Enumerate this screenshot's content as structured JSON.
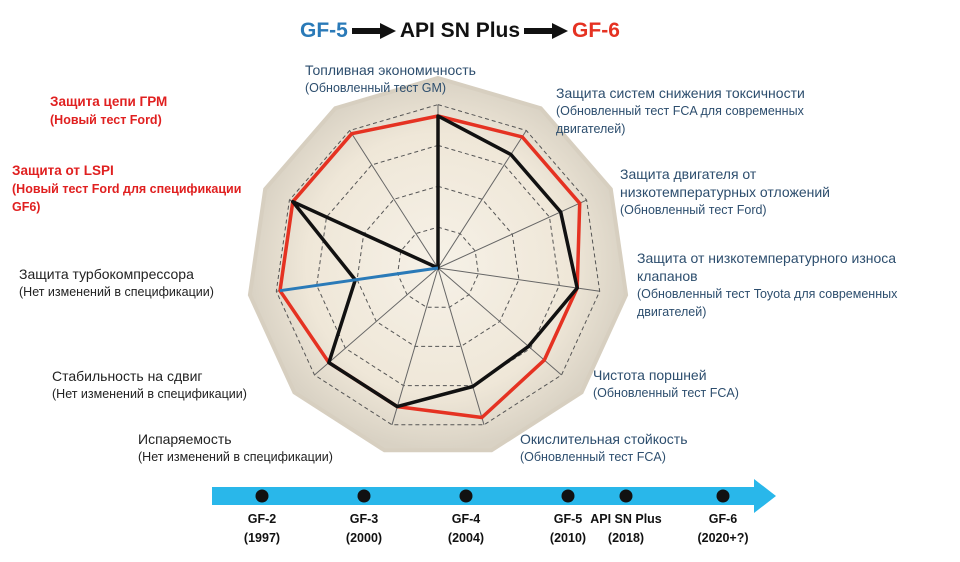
{
  "header": {
    "gf5": "GF-5",
    "api": "API SN Plus",
    "gf6": "GF-6"
  },
  "labels": {
    "fuel": {
      "title": "Топливная экономичность",
      "sub": "(Обновленный тест GM)"
    },
    "emissions": {
      "title": "Защита систем снижения токсичности",
      "sub1": "(Обновленный тест FCA для современных",
      "sub2": "двигателей)"
    },
    "lowtemp": {
      "title1": "Защита двигателя от",
      "title2": "низкотемпературных отложений",
      "sub": "(Обновленный тест Ford)"
    },
    "valve": {
      "title1": "Защита от низкотемпературного износа",
      "title2": "клапанов",
      "sub1": "(Обновленный тест Toyota для современных",
      "sub2": "двигателей)"
    },
    "piston": {
      "title": "Чистота поршней",
      "sub": "(Обновленный тест FCA)"
    },
    "oxid": {
      "title": "Окислительная стойкость",
      "sub": "(Обновленный тест FCA)"
    },
    "evap": {
      "title": "Испаряемость",
      "sub": "(Нет изменений в спецификации)"
    },
    "shear": {
      "title": "Стабильность на сдвиг",
      "sub": "(Нет изменений в спецификации)"
    },
    "turbo": {
      "title": "Защита турбокомпрессора",
      "sub": "(Нет изменений в спецификации)"
    },
    "lspi": {
      "title": "Защита от LSPI",
      "sub1": "(Новый тест Ford для спецификации",
      "sub2": "GF6)"
    },
    "chain": {
      "title": "Защита цепи ГРМ",
      "sub": "(Новый тест Ford)"
    }
  },
  "chart_data": {
    "type": "radar",
    "axes": [
      "Топливная экономичность",
      "Защита систем снижения токсичности",
      "Защита двигателя от низкотемпературных отложений",
      "Защита от низкотемпературного износа клапанов",
      "Чистота поршней",
      "Окислительная стойкость",
      "Испаряемость",
      "Стабильность на сдвиг",
      "Защита турбокомпрессора",
      "Защита от LSPI",
      "Защита цепи ГРМ"
    ],
    "rings": 4,
    "series": [
      {
        "name": "GF-6",
        "color": "#e53222",
        "values": [
          0.8,
          0.82,
          0.82,
          0.74,
          0.74,
          0.82,
          0.76,
          0.76,
          0.84,
          0.84,
          0.84
        ]
      },
      {
        "name": "API SN Plus",
        "color": "#111111",
        "values": [
          0.8,
          0.71,
          0.71,
          0.74,
          0.63,
          0.65,
          0.76,
          0.76,
          0.44,
          0.84,
          0.0
        ]
      },
      {
        "name": "GF-5",
        "color": "#2a7ab8",
        "values": [
          null,
          null,
          null,
          null,
          null,
          null,
          null,
          null,
          0.84,
          null,
          null
        ]
      }
    ]
  },
  "timeline": {
    "items": [
      {
        "name": "GF-2",
        "year": "(1997)"
      },
      {
        "name": "GF-3",
        "year": "(2000)"
      },
      {
        "name": "GF-4",
        "year": "(2004)"
      },
      {
        "name": "GF-5",
        "year": "(2010)"
      },
      {
        "name": "API SN Plus",
        "year": "(2018)"
      },
      {
        "name": "GF-6",
        "year": "(2020+?)"
      }
    ],
    "color": "#29b7ea"
  }
}
